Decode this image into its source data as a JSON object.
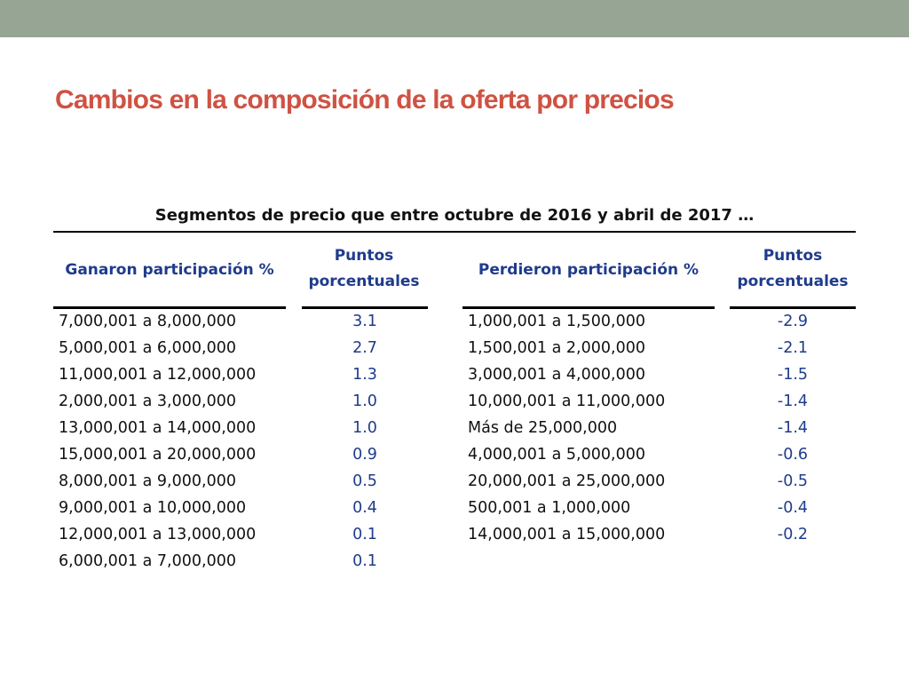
{
  "title": "Cambios en la composición de la oferta por precios",
  "table": {
    "caption": "Segmentos de precio que entre octubre de 2016 y abril de 2017 …",
    "headers": {
      "gained": "Ganaron participación %",
      "points_gained": "Puntos porcentuales",
      "lost": "Perdieron participación %",
      "points_lost": "Puntos porcentuales"
    },
    "gained_ranges": [
      "7,000,001 a 8,000,000",
      "5,000,001 a 6,000,000",
      "11,000,001 a 12,000,000",
      "2,000,001 a 3,000,000",
      "13,000,001 a 14,000,000",
      "15,000,001 a 20,000,000",
      "8,000,001 a 9,000,000",
      "9,000,001 a 10,000,000",
      "12,000,001 a 13,000,000",
      "6,000,001 a 7,000,000"
    ],
    "gained_points": [
      "3.1",
      "2.7",
      "1.3",
      "1.0",
      "1.0",
      "0.9",
      "0.5",
      "0.4",
      "0.1",
      "0.1"
    ],
    "lost_ranges": [
      "1,000,001 a 1,500,000",
      "1,500,001 a 2,000,000",
      "3,000,001 a 4,000,000",
      "10,000,001 a 11,000,000",
      "Más de 25,000,000",
      "4,000,001 a 5,000,000",
      "20,000,001 a 25,000,000",
      "500,001 a 1,000,000",
      "14,000,001 a 15,000,000"
    ],
    "lost_points": [
      "-2.9",
      "-2.1",
      "-1.5",
      "-1.4",
      "-1.4",
      "-0.6",
      "-0.5",
      "-0.4",
      "-0.2"
    ]
  }
}
